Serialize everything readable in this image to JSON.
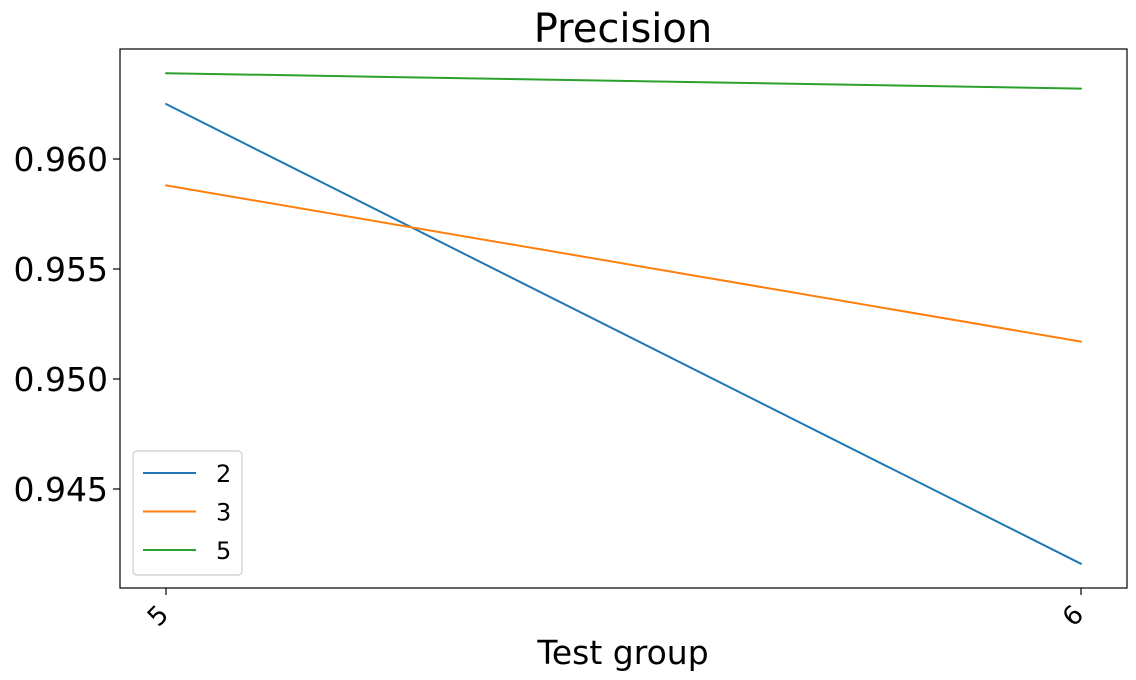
{
  "chart_data": {
    "type": "line",
    "title": "Precision",
    "xlabel": "Test group",
    "ylabel": "",
    "categories": [
      "5",
      "6"
    ],
    "yticks": [
      "0.945",
      "0.950",
      "0.955",
      "0.960"
    ],
    "ylim": [
      0.9405,
      0.965
    ],
    "grid": false,
    "legend_position": "lower-left",
    "series": [
      {
        "name": "2",
        "color": "#1f77b4",
        "values": [
          0.9625,
          0.9416
        ]
      },
      {
        "name": "3",
        "color": "#ff7f0e",
        "values": [
          0.9588,
          0.9517
        ]
      },
      {
        "name": "5",
        "color": "#2ca02c",
        "values": [
          0.9639,
          0.9632
        ]
      }
    ]
  }
}
